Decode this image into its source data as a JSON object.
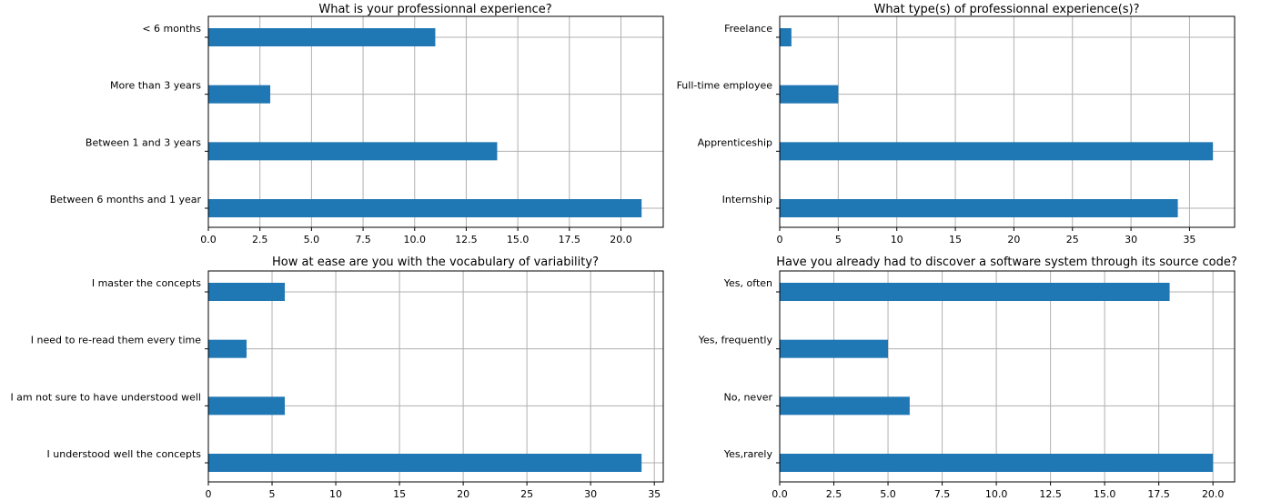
{
  "colors": {
    "bar": "#1f77b4",
    "grid": "#b0b0b0",
    "axis": "#000000",
    "background": "#ffffff"
  },
  "chart_data": [
    {
      "type": "bar",
      "orientation": "horizontal",
      "title": "What is your professionnal experience?",
      "categories": [
        "< 6 months",
        "More than 3 years",
        "Between 1 and 3 years",
        "Between 6 months and 1 year"
      ],
      "values": [
        11,
        3,
        14,
        21
      ],
      "xlim": [
        0,
        22.05
      ],
      "xticks": [
        "0.0",
        "2.5",
        "5.0",
        "7.5",
        "10.0",
        "12.5",
        "15.0",
        "17.5",
        "20.0"
      ],
      "xtick_values": [
        0,
        2.5,
        5,
        7.5,
        10,
        12.5,
        15,
        17.5,
        20
      ],
      "grid": true,
      "xlabel": "",
      "ylabel": ""
    },
    {
      "type": "bar",
      "orientation": "horizontal",
      "title": "What type(s) of professionnal experience(s)?",
      "categories": [
        "Freelance",
        "Full-time employee",
        "Apprenticeship",
        "Internship"
      ],
      "values": [
        1,
        5,
        37,
        34
      ],
      "xlim": [
        0,
        38.85
      ],
      "xticks": [
        "0",
        "5",
        "10",
        "15",
        "20",
        "25",
        "30",
        "35"
      ],
      "xtick_values": [
        0,
        5,
        10,
        15,
        20,
        25,
        30,
        35
      ],
      "grid": true,
      "xlabel": "",
      "ylabel": ""
    },
    {
      "type": "bar",
      "orientation": "horizontal",
      "title": "How at ease are you with the vocabulary of variability?",
      "categories": [
        "I master the concepts",
        "I need to re-read them every time",
        "I am not sure to have understood well",
        "I understood well the concepts"
      ],
      "values": [
        6,
        3,
        6,
        34
      ],
      "xlim": [
        0,
        35.7
      ],
      "xticks": [
        "0",
        "5",
        "10",
        "15",
        "20",
        "25",
        "30",
        "35"
      ],
      "xtick_values": [
        0,
        5,
        10,
        15,
        20,
        25,
        30,
        35
      ],
      "grid": true,
      "xlabel": "",
      "ylabel": ""
    },
    {
      "type": "bar",
      "orientation": "horizontal",
      "title": "Have you already had to discover a software system through its source code?",
      "categories": [
        "Yes, often",
        "Yes, frequently",
        "No, never",
        "Yes,rarely"
      ],
      "values": [
        18,
        5,
        6,
        20
      ],
      "xlim": [
        0,
        21
      ],
      "xticks": [
        "0.0",
        "2.5",
        "5.0",
        "7.5",
        "10.0",
        "12.5",
        "15.0",
        "17.5",
        "20.0"
      ],
      "xtick_values": [
        0,
        2.5,
        5,
        7.5,
        10,
        12.5,
        15,
        17.5,
        20
      ],
      "grid": true,
      "xlabel": "",
      "ylabel": ""
    }
  ]
}
